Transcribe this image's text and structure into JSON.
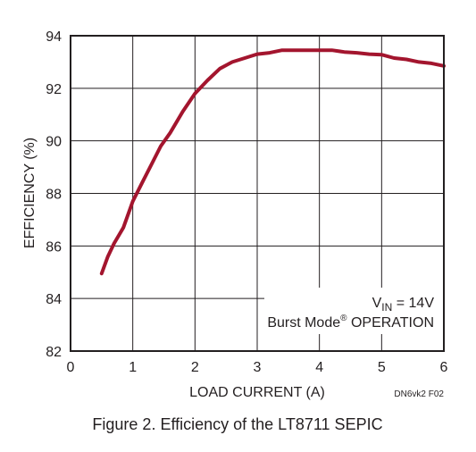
{
  "chart_data": {
    "type": "line",
    "xlabel": "LOAD CURRENT (A)",
    "ylabel": "EFFICIENCY (%)",
    "xlim": [
      0,
      6
    ],
    "ylim": [
      82,
      94
    ],
    "x_ticks": [
      "0",
      "1",
      "2",
      "3",
      "4",
      "5",
      "6"
    ],
    "y_ticks": [
      "82",
      "84",
      "86",
      "88",
      "90",
      "92",
      "94"
    ],
    "grid": true,
    "series": [
      {
        "color": "#a3152e",
        "x": [
          0.5,
          0.6,
          0.7,
          0.85,
          1.0,
          1.15,
          1.3,
          1.45,
          1.6,
          1.8,
          2.0,
          2.2,
          2.4,
          2.6,
          2.8,
          3.0,
          3.2,
          3.4,
          3.6,
          3.8,
          4.0,
          4.2,
          4.4,
          4.6,
          4.8,
          5.0,
          5.2,
          5.4,
          5.6,
          5.8,
          6.0
        ],
        "y": [
          84.95,
          85.6,
          86.1,
          86.7,
          87.7,
          88.4,
          89.1,
          89.8,
          90.3,
          91.1,
          91.8,
          92.3,
          92.75,
          93.0,
          93.15,
          93.3,
          93.35,
          93.45,
          93.45,
          93.45,
          93.45,
          93.45,
          93.38,
          93.35,
          93.3,
          93.28,
          93.15,
          93.1,
          93.0,
          92.95,
          92.85
        ]
      }
    ],
    "annotation": {
      "line1_prefix": "V",
      "line1_sub": "IN",
      "line1_suffix": " = 14V",
      "line2_main": "Burst Mode",
      "line2_sup": "®",
      "line2_suffix": " OPERATION"
    },
    "figure_code": "DN6vk2 F02",
    "caption": "Figure 2. Efficiency of the LT8711 SEPIC"
  }
}
